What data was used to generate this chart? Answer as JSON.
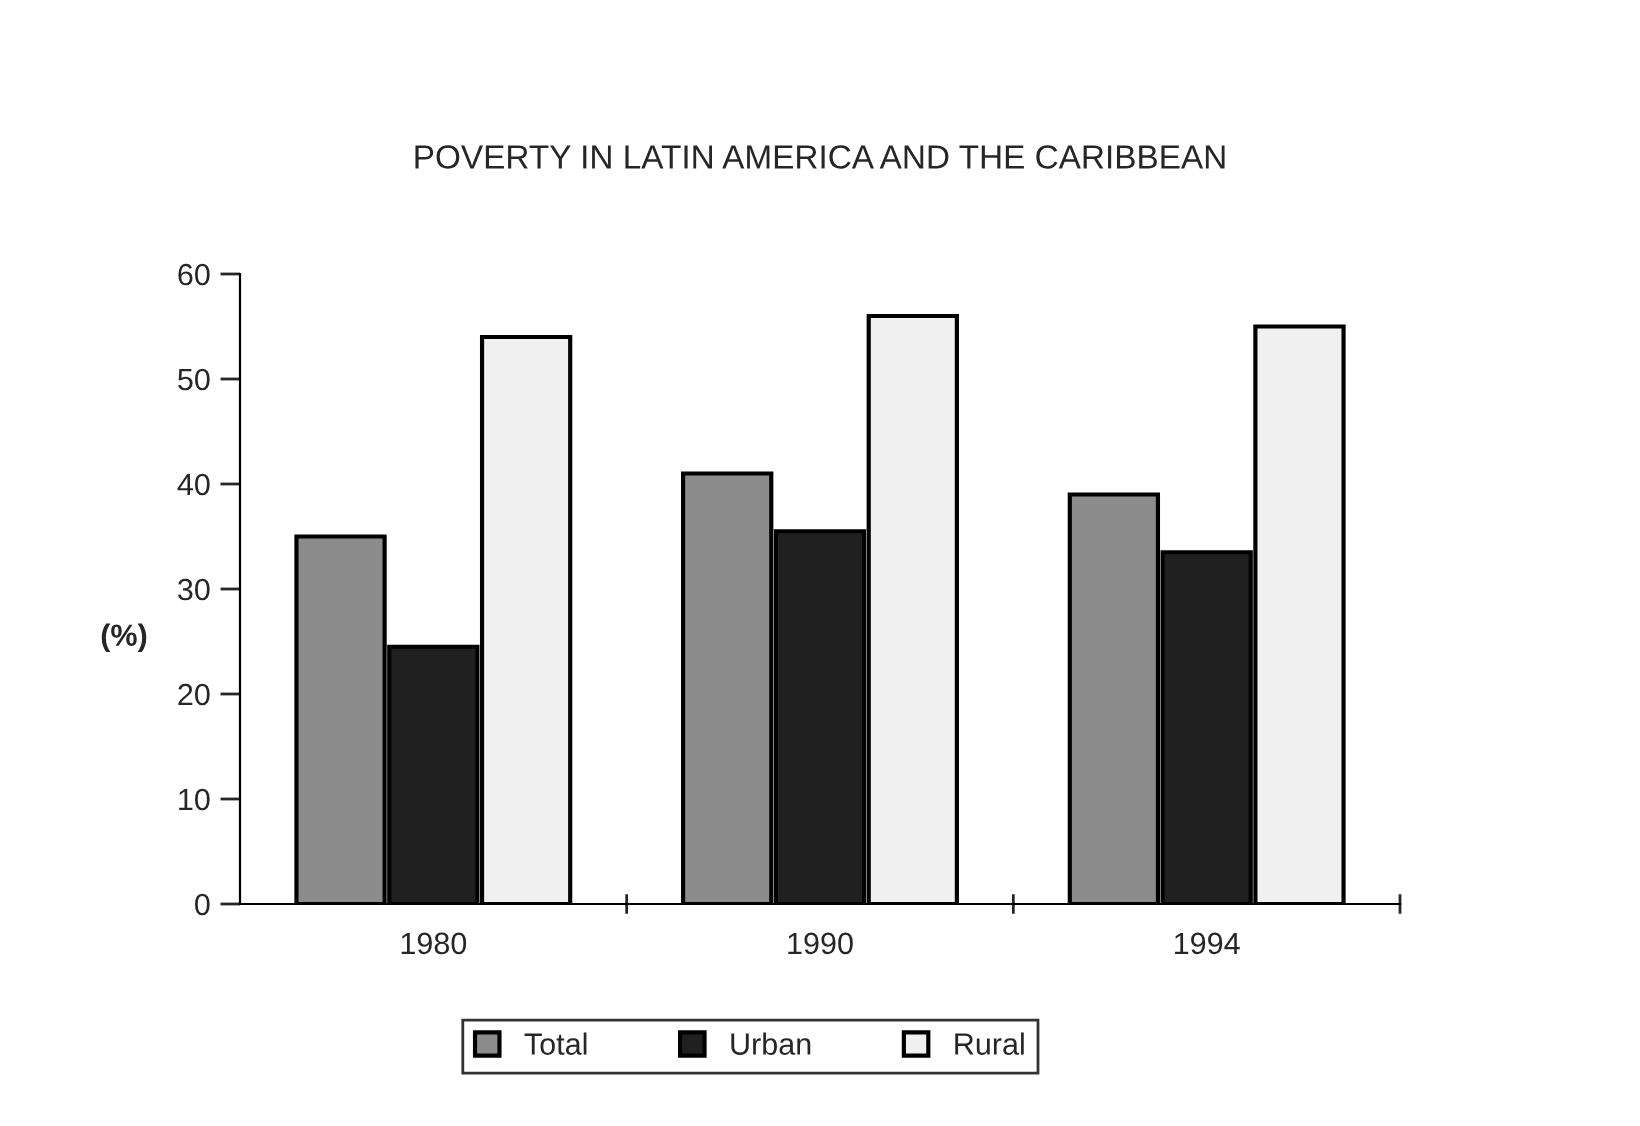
{
  "chart_data": {
    "type": "bar",
    "title": "POVERTY IN LATIN AMERICA AND THE CARIBBEAN",
    "ylabel": "(%)",
    "categories": [
      "1980",
      "1990",
      "1994"
    ],
    "series": [
      {
        "name": "Total",
        "color": "#8c8c8c",
        "values": [
          35,
          41,
          39
        ]
      },
      {
        "name": "Urban",
        "color": "#202020",
        "values": [
          24.5,
          35.5,
          33.5
        ]
      },
      {
        "name": "Rural",
        "color": "#f0f0f0",
        "values": [
          54,
          56,
          55
        ]
      }
    ],
    "ylim": [
      0,
      60
    ],
    "yticks": [
      0,
      10,
      20,
      30,
      40,
      50,
      60
    ],
    "grid": false,
    "legend": "bottom"
  }
}
